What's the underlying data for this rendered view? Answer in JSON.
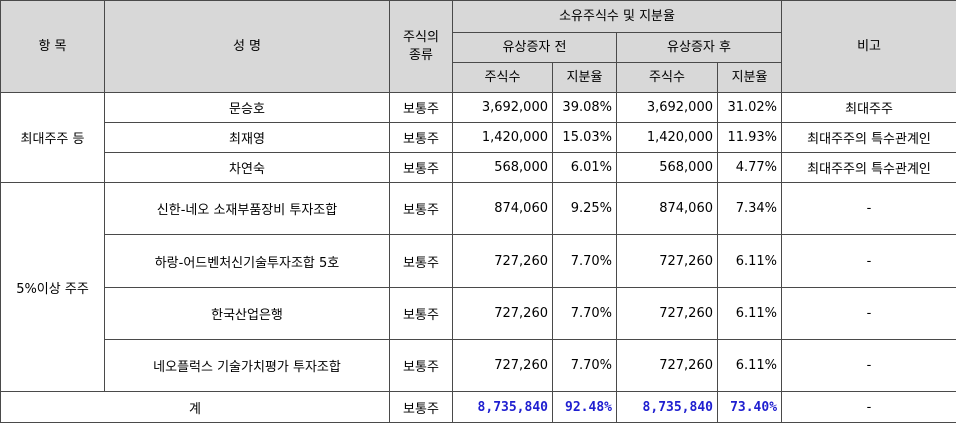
{
  "header": {
    "item": "항 목",
    "name": "성 명",
    "stock_type": "주식의 종류",
    "ownership": "소유주식수 및 지분율",
    "before": "유상증자 전",
    "after": "유상증자 후",
    "note": "비고",
    "shares": "주식수",
    "ratio": "지분율"
  },
  "groups": {
    "largest": "최대주주 등",
    "five_pct": "5%이상 주주"
  },
  "rows": [
    {
      "name": "문승호",
      "type": "보통주",
      "shares_before": "3,692,000",
      "ratio_before": "39.08%",
      "shares_after": "3,692,000",
      "ratio_after": "31.02%",
      "note": "최대주주"
    },
    {
      "name": "최재영",
      "type": "보통주",
      "shares_before": "1,420,000",
      "ratio_before": "15.03%",
      "shares_after": "1,420,000",
      "ratio_after": "11.93%",
      "note": "최대주주의 특수관계인"
    },
    {
      "name": "차연숙",
      "type": "보통주",
      "shares_before": "568,000",
      "ratio_before": "6.01%",
      "shares_after": "568,000",
      "ratio_after": "4.77%",
      "note": "최대주주의 특수관계인"
    },
    {
      "name": "신한-네오 소재부품장비 투자조합",
      "type": "보통주",
      "shares_before": "874,060",
      "ratio_before": "9.25%",
      "shares_after": "874,060",
      "ratio_after": "7.34%",
      "note": "-"
    },
    {
      "name": "하랑-어드벤처신기술투자조합 5호",
      "type": "보통주",
      "shares_before": "727,260",
      "ratio_before": "7.70%",
      "shares_after": "727,260",
      "ratio_after": "6.11%",
      "note": "-"
    },
    {
      "name": "한국산업은행",
      "type": "보통주",
      "shares_before": "727,260",
      "ratio_before": "7.70%",
      "shares_after": "727,260",
      "ratio_after": "6.11%",
      "note": "-"
    },
    {
      "name": "네오플럭스 기술가치평가 투자조합",
      "type": "보통주",
      "shares_before": "727,260",
      "ratio_before": "7.70%",
      "shares_after": "727,260",
      "ratio_after": "6.11%",
      "note": "-"
    }
  ],
  "total": {
    "label": "계",
    "type": "보통주",
    "shares_before": "8,735,840",
    "ratio_before": "92.48%",
    "shares_after": "8,735,840",
    "ratio_after": "73.40%",
    "note": "-"
  }
}
